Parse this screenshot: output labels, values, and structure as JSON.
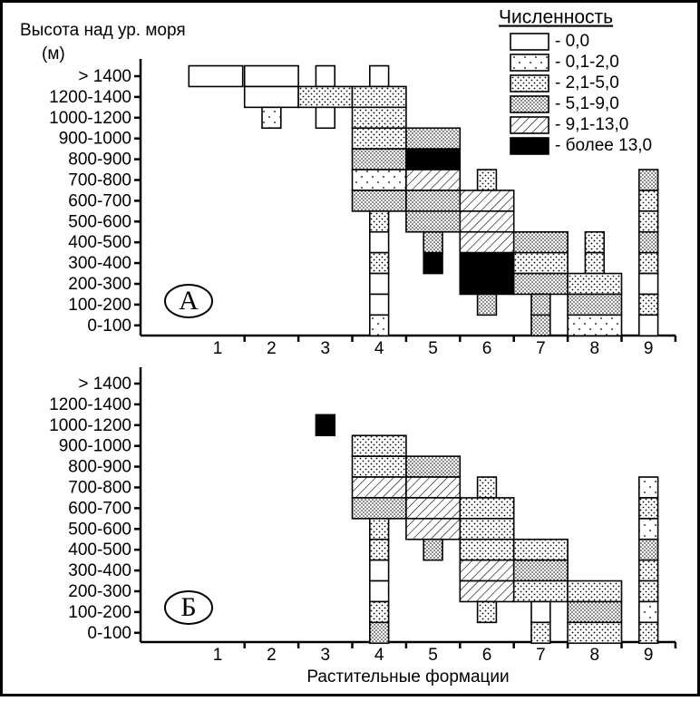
{
  "chart_data": {
    "type": "abundance-grid",
    "y_title": "Высота над ур. моря",
    "y_unit": "(м)",
    "x_title": "Растительные формации",
    "categories": [
      1,
      2,
      3,
      4,
      5,
      6,
      7,
      8,
      9
    ],
    "rows": [
      "> 1400",
      "1200-1400",
      "1000-1200",
      "900-1000",
      "800-900",
      "700-800",
      "600-700",
      "500-600",
      "400-500",
      "300-400",
      "200-300",
      "100-200",
      "0-100"
    ],
    "legend": {
      "title": "Численность",
      "items": [
        "- 0,0",
        "- 0,1-2,0",
        "- 2,1-5,0",
        "- 5,1-9,0",
        "- 9,1-13,0",
        "- более 13,0"
      ]
    },
    "panels": [
      {
        "label": "А",
        "cells": [
          {
            "formation": 1,
            "row": 0,
            "class": 0,
            "width": 1
          },
          {
            "formation": 2,
            "row": 0,
            "class": 0,
            "width": 1
          },
          {
            "formation": 2,
            "row": 1,
            "class": 0,
            "width": 1
          },
          {
            "formation": 2,
            "row": 2,
            "class": 1,
            "width": 0.35
          },
          {
            "formation": 3,
            "row": 0,
            "class": 0,
            "width": 0.35
          },
          {
            "formation": 3,
            "row": 1,
            "class": 2,
            "width": 1
          },
          {
            "formation": 3,
            "row": 2,
            "class": 0,
            "width": 0.35
          },
          {
            "formation": 4,
            "row": 0,
            "class": 0,
            "width": 0.35
          },
          {
            "formation": 4,
            "row": 1,
            "class": 2,
            "width": 1
          },
          {
            "formation": 4,
            "row": 2,
            "class": 2,
            "width": 1
          },
          {
            "formation": 4,
            "row": 3,
            "class": 2,
            "width": 1
          },
          {
            "formation": 4,
            "row": 4,
            "class": 3,
            "width": 1
          },
          {
            "formation": 4,
            "row": 5,
            "class": 1,
            "width": 1
          },
          {
            "formation": 4,
            "row": 6,
            "class": 3,
            "width": 1
          },
          {
            "formation": 4,
            "row": 7,
            "class": 2,
            "width": 0.35
          },
          {
            "formation": 4,
            "row": 8,
            "class": 0,
            "width": 0.35
          },
          {
            "formation": 4,
            "row": 9,
            "class": 2,
            "width": 0.35
          },
          {
            "formation": 4,
            "row": 10,
            "class": 0,
            "width": 0.35
          },
          {
            "formation": 4,
            "row": 11,
            "class": 0,
            "width": 0.35
          },
          {
            "formation": 4,
            "row": 12,
            "class": 1,
            "width": 0.35
          },
          {
            "formation": 5,
            "row": 3,
            "class": 3,
            "width": 1
          },
          {
            "formation": 5,
            "row": 4,
            "class": 5,
            "width": 1
          },
          {
            "formation": 5,
            "row": 5,
            "class": 4,
            "width": 1
          },
          {
            "formation": 5,
            "row": 6,
            "class": 3,
            "width": 1
          },
          {
            "formation": 5,
            "row": 7,
            "class": 3,
            "width": 1
          },
          {
            "formation": 5,
            "row": 8,
            "class": 3,
            "width": 0.35
          },
          {
            "formation": 5,
            "row": 9,
            "class": 5,
            "width": 0.35
          },
          {
            "formation": 6,
            "row": 5,
            "class": 2,
            "width": 0.35
          },
          {
            "formation": 6,
            "row": 6,
            "class": 4,
            "width": 1
          },
          {
            "formation": 6,
            "row": 7,
            "class": 4,
            "width": 1
          },
          {
            "formation": 6,
            "row": 8,
            "class": 4,
            "width": 1
          },
          {
            "formation": 6,
            "row": 9,
            "class": 5,
            "width": 1
          },
          {
            "formation": 6,
            "row": 10,
            "class": 5,
            "width": 1
          },
          {
            "formation": 6,
            "row": 11,
            "class": 3,
            "width": 0.35
          },
          {
            "formation": 7,
            "row": 8,
            "class": 3,
            "width": 1
          },
          {
            "formation": 7,
            "row": 9,
            "class": 2,
            "width": 1
          },
          {
            "formation": 7,
            "row": 10,
            "class": 3,
            "width": 1
          },
          {
            "formation": 7,
            "row": 11,
            "class": 3,
            "width": 0.35
          },
          {
            "formation": 7,
            "row": 12,
            "class": 3,
            "width": 0.35
          },
          {
            "formation": 8,
            "row": 8,
            "class": 2,
            "width": 0.35
          },
          {
            "formation": 8,
            "row": 9,
            "class": 2,
            "width": 0.35
          },
          {
            "formation": 8,
            "row": 10,
            "class": 2,
            "width": 1
          },
          {
            "formation": 8,
            "row": 11,
            "class": 3,
            "width": 1
          },
          {
            "formation": 8,
            "row": 12,
            "class": 1,
            "width": 1
          },
          {
            "formation": 9,
            "row": 5,
            "class": 3,
            "width": 0.35
          },
          {
            "formation": 9,
            "row": 6,
            "class": 2,
            "width": 0.35
          },
          {
            "formation": 9,
            "row": 7,
            "class": 2,
            "width": 0.35
          },
          {
            "formation": 9,
            "row": 8,
            "class": 3,
            "width": 0.35
          },
          {
            "formation": 9,
            "row": 9,
            "class": 2,
            "width": 0.35
          },
          {
            "formation": 9,
            "row": 10,
            "class": 0,
            "width": 0.35
          },
          {
            "formation": 9,
            "row": 11,
            "class": 2,
            "width": 0.35
          },
          {
            "formation": 9,
            "row": 12,
            "class": 0,
            "width": 0.35
          }
        ]
      },
      {
        "label": "Б",
        "cells": [
          {
            "formation": 3,
            "row": 2,
            "class": 5,
            "width": 0.35
          },
          {
            "formation": 4,
            "row": 3,
            "class": 2,
            "width": 1
          },
          {
            "formation": 4,
            "row": 4,
            "class": 2,
            "width": 1
          },
          {
            "formation": 4,
            "row": 5,
            "class": 4,
            "width": 1
          },
          {
            "formation": 4,
            "row": 6,
            "class": 3,
            "width": 1
          },
          {
            "formation": 4,
            "row": 7,
            "class": 2,
            "width": 0.35
          },
          {
            "formation": 4,
            "row": 8,
            "class": 2,
            "width": 0.35
          },
          {
            "formation": 4,
            "row": 9,
            "class": 0,
            "width": 0.35
          },
          {
            "formation": 4,
            "row": 10,
            "class": 0,
            "width": 0.35
          },
          {
            "formation": 4,
            "row": 11,
            "class": 2,
            "width": 0.35
          },
          {
            "formation": 4,
            "row": 12,
            "class": 3,
            "width": 0.35
          },
          {
            "formation": 5,
            "row": 4,
            "class": 3,
            "width": 1
          },
          {
            "formation": 5,
            "row": 5,
            "class": 4,
            "width": 1
          },
          {
            "formation": 5,
            "row": 6,
            "class": 4,
            "width": 1
          },
          {
            "formation": 5,
            "row": 7,
            "class": 4,
            "width": 1
          },
          {
            "formation": 5,
            "row": 8,
            "class": 3,
            "width": 0.35
          },
          {
            "formation": 6,
            "row": 5,
            "class": 2,
            "width": 0.35
          },
          {
            "formation": 6,
            "row": 6,
            "class": 2,
            "width": 1
          },
          {
            "formation": 6,
            "row": 7,
            "class": 2,
            "width": 1
          },
          {
            "formation": 6,
            "row": 8,
            "class": 2,
            "width": 1
          },
          {
            "formation": 6,
            "row": 9,
            "class": 4,
            "width": 1
          },
          {
            "formation": 6,
            "row": 10,
            "class": 4,
            "width": 1
          },
          {
            "formation": 6,
            "row": 11,
            "class": 2,
            "width": 0.35
          },
          {
            "formation": 7,
            "row": 8,
            "class": 2,
            "width": 1
          },
          {
            "formation": 7,
            "row": 9,
            "class": 3,
            "width": 1
          },
          {
            "formation": 7,
            "row": 10,
            "class": 2,
            "width": 1
          },
          {
            "formation": 7,
            "row": 11,
            "class": 0,
            "width": 0.35
          },
          {
            "formation": 7,
            "row": 12,
            "class": 2,
            "width": 0.35
          },
          {
            "formation": 8,
            "row": 10,
            "class": 2,
            "width": 1
          },
          {
            "formation": 8,
            "row": 11,
            "class": 3,
            "width": 1
          },
          {
            "formation": 8,
            "row": 12,
            "class": 2,
            "width": 1
          },
          {
            "formation": 9,
            "row": 5,
            "class": 1,
            "width": 0.35
          },
          {
            "formation": 9,
            "row": 6,
            "class": 2,
            "width": 0.35
          },
          {
            "formation": 9,
            "row": 7,
            "class": 1,
            "width": 0.35
          },
          {
            "formation": 9,
            "row": 8,
            "class": 3,
            "width": 0.35
          },
          {
            "formation": 9,
            "row": 9,
            "class": 2,
            "width": 0.35
          },
          {
            "formation": 9,
            "row": 10,
            "class": 2,
            "width": 0.35
          },
          {
            "formation": 9,
            "row": 11,
            "class": 1,
            "width": 0.35
          },
          {
            "formation": 9,
            "row": 12,
            "class": 2,
            "width": 0.35
          }
        ]
      }
    ]
  }
}
